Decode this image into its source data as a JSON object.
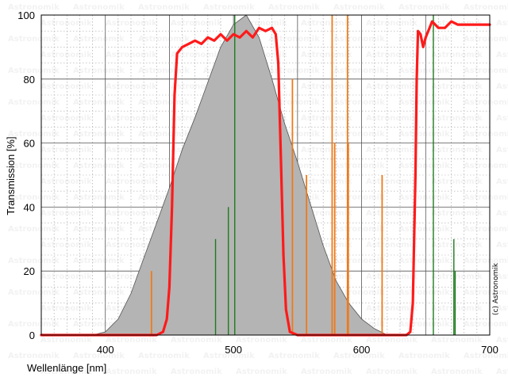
{
  "chart_data": {
    "type": "line",
    "title": "",
    "xlabel": "Wellenlänge [nm]",
    "ylabel": "Transmission [%]",
    "xlim": [
      350,
      700
    ],
    "ylim": [
      0,
      100
    ],
    "xticks": [
      400,
      500,
      600,
      700
    ],
    "yticks": [
      0,
      20,
      40,
      60,
      80,
      100
    ],
    "grid": true,
    "credit": "(c) Astronomik",
    "watermark": "Astronomik",
    "colors": {
      "filter": "#ff1a1a",
      "sensitivity_fill": "#b4b4b4",
      "sensitivity_edge": "#555555",
      "green_lines": "#1e7a1e",
      "orange_lines": "#ee7a1a"
    },
    "series": [
      {
        "type": "area",
        "points": [
          [
            350,
            0
          ],
          [
            390,
            0
          ],
          [
            400,
            1
          ],
          [
            410,
            5
          ],
          [
            420,
            13
          ],
          [
            430,
            24
          ],
          [
            440,
            35
          ],
          [
            450,
            46
          ],
          [
            460,
            58
          ],
          [
            470,
            68
          ],
          [
            480,
            79
          ],
          [
            490,
            90
          ],
          [
            500,
            97
          ],
          [
            510,
            100
          ],
          [
            520,
            93
          ],
          [
            530,
            80
          ],
          [
            540,
            66
          ],
          [
            550,
            54
          ],
          [
            560,
            41
          ],
          [
            570,
            28
          ],
          [
            580,
            17
          ],
          [
            590,
            10
          ],
          [
            600,
            5
          ],
          [
            610,
            2
          ],
          [
            620,
            0
          ],
          [
            700,
            0
          ]
        ]
      },
      {
        "type": "line",
        "points": [
          [
            350,
            0
          ],
          [
            440,
            0
          ],
          [
            445,
            1
          ],
          [
            448,
            5
          ],
          [
            450,
            15
          ],
          [
            452,
            40
          ],
          [
            454,
            75
          ],
          [
            456,
            88
          ],
          [
            460,
            90
          ],
          [
            465,
            91
          ],
          [
            470,
            92
          ],
          [
            475,
            91
          ],
          [
            480,
            93
          ],
          [
            485,
            92
          ],
          [
            490,
            94
          ],
          [
            495,
            92
          ],
          [
            500,
            94
          ],
          [
            505,
            93
          ],
          [
            510,
            95
          ],
          [
            515,
            93
          ],
          [
            520,
            96
          ],
          [
            525,
            95
          ],
          [
            530,
            96
          ],
          [
            533,
            94
          ],
          [
            535,
            85
          ],
          [
            537,
            55
          ],
          [
            539,
            25
          ],
          [
            541,
            8
          ],
          [
            544,
            1
          ],
          [
            550,
            0
          ],
          [
            635,
            0
          ],
          [
            638,
            1
          ],
          [
            640,
            10
          ],
          [
            642,
            50
          ],
          [
            643,
            80
          ],
          [
            644,
            95
          ],
          [
            646,
            94
          ],
          [
            648,
            90
          ],
          [
            650,
            93
          ],
          [
            655,
            98
          ],
          [
            660,
            96
          ],
          [
            665,
            96
          ],
          [
            670,
            98
          ],
          [
            675,
            97
          ],
          [
            680,
            97
          ],
          [
            690,
            97
          ],
          [
            700,
            97
          ]
        ]
      }
    ],
    "spectral_lines": [
      {
        "color": "green",
        "x": 486,
        "y": 30
      },
      {
        "color": "green",
        "x": 496,
        "y": 40
      },
      {
        "color": "green",
        "x": 501,
        "y": 100
      },
      {
        "color": "green",
        "x": 656,
        "y": 100
      },
      {
        "color": "green",
        "x": 672,
        "y": 30
      },
      {
        "color": "green",
        "x": 673,
        "y": 20
      },
      {
        "color": "orange",
        "x": 436,
        "y": 20
      },
      {
        "color": "orange",
        "x": 546,
        "y": 80
      },
      {
        "color": "orange",
        "x": 557,
        "y": 50
      },
      {
        "color": "orange",
        "x": 577,
        "y": 100
      },
      {
        "color": "orange",
        "x": 579,
        "y": 60
      },
      {
        "color": "orange",
        "x": 589,
        "y": 100
      },
      {
        "color": "orange",
        "x": 589.6,
        "y": 60
      },
      {
        "color": "orange",
        "x": 616,
        "y": 50
      }
    ]
  }
}
